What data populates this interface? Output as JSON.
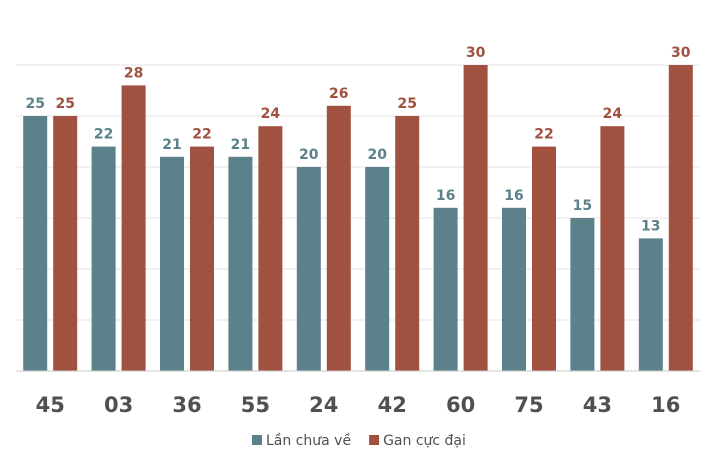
{
  "chart_data": {
    "type": "bar",
    "categories": [
      "45",
      "03",
      "36",
      "55",
      "24",
      "42",
      "60",
      "75",
      "43",
      "16"
    ],
    "series": [
      {
        "name": "Lần chưa về",
        "color": "#5b818a",
        "label_color": "#5b818a",
        "values": [
          25,
          22,
          21,
          21,
          20,
          20,
          16,
          16,
          15,
          13
        ]
      },
      {
        "name": "Gan cực đại",
        "color": "#a0513f",
        "label_color": "#a0513f",
        "values": [
          25,
          28,
          22,
          24,
          26,
          25,
          30,
          22,
          24,
          30
        ]
      }
    ],
    "title": "",
    "xlabel": "",
    "ylabel": "",
    "ylim": [
      0,
      30
    ],
    "grid": true,
    "legend": "bottom-center"
  }
}
